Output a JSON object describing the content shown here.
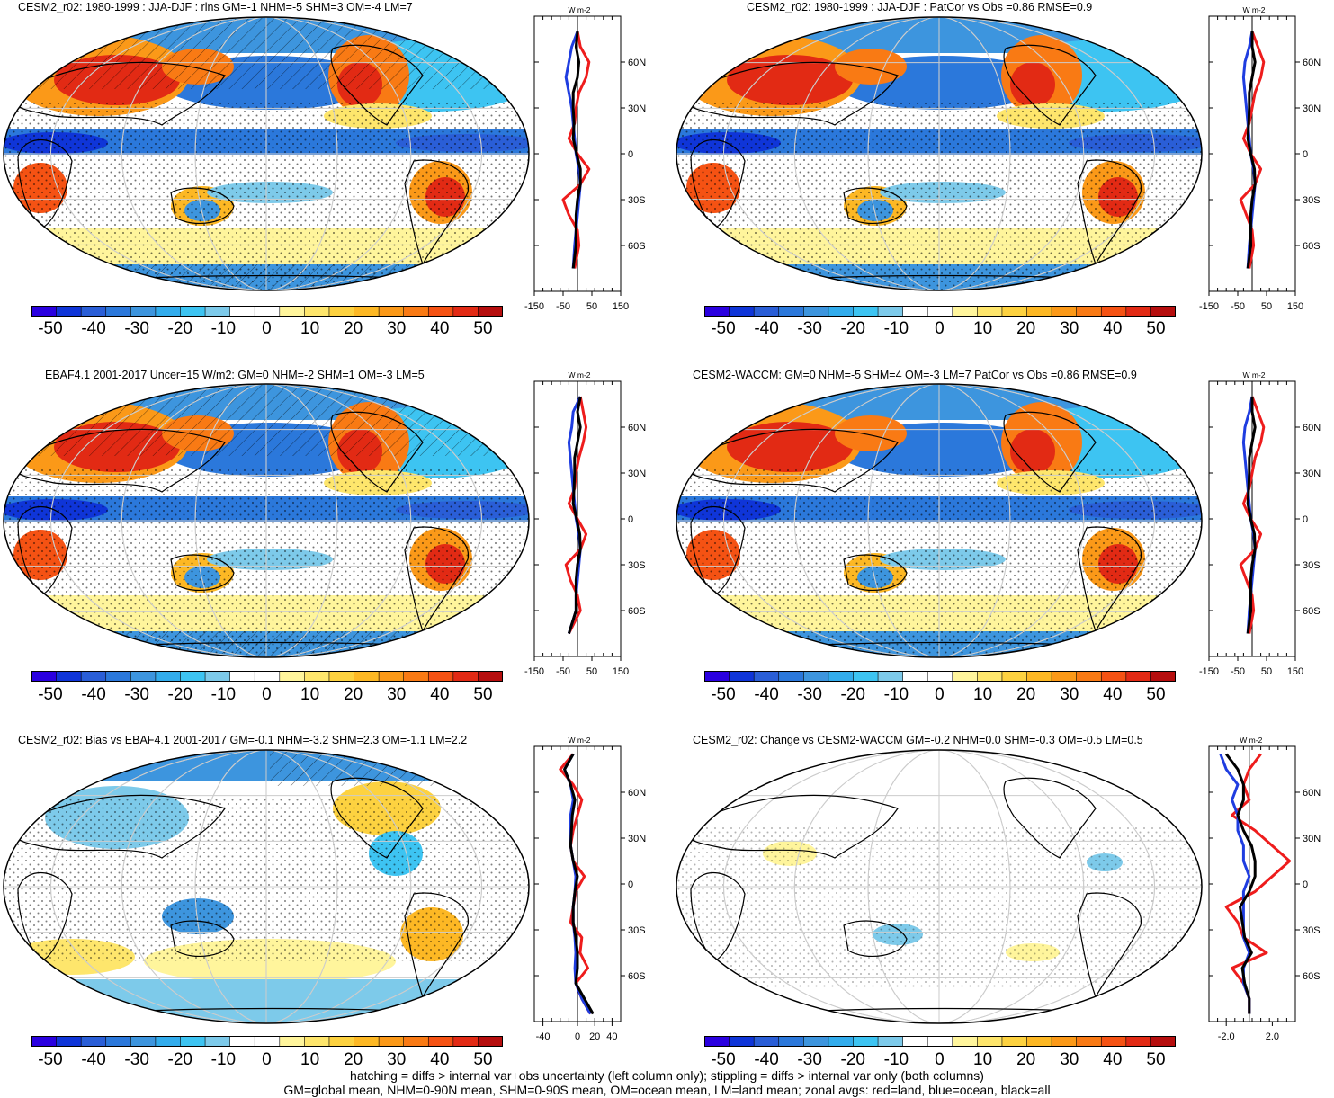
{
  "colorbar": {
    "colors": [
      "#2a00e0",
      "#0f35d8",
      "#2a5ed7",
      "#2b78db",
      "#3d95de",
      "#32acec",
      "#3dc4f2",
      "#7dcaea",
      "#ffffff",
      "#ffffff",
      "#fff59c",
      "#fee66c",
      "#fdd240",
      "#fdb824",
      "#fb9918",
      "#f97a14",
      "#f55213",
      "#e22a14",
      "#b60e0e"
    ],
    "labels": [
      "-50",
      "-40",
      "-30",
      "-20",
      "-10",
      "0",
      "10",
      "20",
      "30",
      "40",
      "50"
    ]
  },
  "chart_data": [
    {
      "type": "heatmap",
      "title": "CESM2_r02: 1980-1999 : JJA-DJF : rlns GM=-1 NHM=-5 SHM=3 OM=-4 LM=7",
      "zonal": {
        "unit_label": "W m-2",
        "xlim": [
          -150,
          150
        ],
        "xticks": [
          "-150",
          "-50",
          "50",
          "150"
        ],
        "yticks": [
          "60N",
          "30N",
          "0",
          "30S",
          "60S"
        ],
        "series": {
          "land": {
            "lat": [
              80,
              70,
              60,
              50,
              40,
              30,
              20,
              10,
              0,
              -10,
              -20,
              -30,
              -40,
              -50,
              -60,
              -75
            ],
            "values": [
              0,
              10,
              40,
              30,
              5,
              -5,
              -10,
              -30,
              0,
              40,
              10,
              -50,
              -30,
              0,
              5,
              -10
            ]
          },
          "ocean": {
            "lat": [
              80,
              70,
              60,
              50,
              40,
              30,
              20,
              10,
              0,
              -10,
              -20,
              -30,
              -40,
              -50,
              -60,
              -75
            ],
            "values": [
              0,
              -20,
              -30,
              -40,
              -30,
              -20,
              -15,
              -10,
              -5,
              5,
              10,
              5,
              0,
              -5,
              -10,
              -15
            ]
          },
          "all": {
            "lat": [
              80,
              70,
              60,
              50,
              40,
              30,
              20,
              10,
              0,
              -10,
              -20,
              -30,
              -40,
              -50,
              -60,
              -75
            ],
            "values": [
              0,
              -5,
              5,
              0,
              -15,
              -15,
              -12,
              -15,
              -3,
              10,
              10,
              0,
              -5,
              -5,
              -5,
              -15
            ]
          }
        }
      }
    },
    {
      "type": "heatmap",
      "title": "CESM2_r02: 1980-1999 : JJA-DJF : PatCor vs Obs =0.86 RMSE=0.9",
      "zonal": {
        "unit_label": "W m-2",
        "xlim": [
          -150,
          150
        ],
        "xticks": [
          "-150",
          "-50",
          "50",
          "150"
        ],
        "yticks": [
          "60N",
          "30N",
          "0",
          "30S",
          "60S"
        ],
        "series": {
          "land": {
            "lat": [
              80,
              70,
              60,
              50,
              40,
              30,
              20,
              10,
              0,
              -10,
              -20,
              -30,
              -40,
              -50,
              -60,
              -75
            ],
            "values": [
              0,
              20,
              40,
              30,
              10,
              0,
              -10,
              -30,
              -5,
              30,
              10,
              -40,
              -20,
              0,
              5,
              -10
            ]
          },
          "ocean": {
            "lat": [
              80,
              70,
              60,
              50,
              40,
              30,
              20,
              10,
              0,
              -10,
              -20,
              -30,
              -40,
              -50,
              -60,
              -75
            ],
            "values": [
              0,
              -10,
              -25,
              -30,
              -25,
              -20,
              -15,
              -10,
              -5,
              5,
              10,
              5,
              0,
              -5,
              -10,
              -15
            ]
          },
          "all": {
            "lat": [
              80,
              70,
              60,
              50,
              40,
              30,
              20,
              10,
              0,
              -10,
              -20,
              -30,
              -40,
              -50,
              -60,
              -75
            ],
            "values": [
              0,
              0,
              10,
              0,
              -10,
              -10,
              -12,
              -15,
              -5,
              8,
              10,
              0,
              -5,
              -5,
              -5,
              -15
            ]
          }
        }
      }
    },
    {
      "type": "heatmap",
      "title": "EBAF4.1 2001-2017 Uncer=15 W/m2: GM=0 NHM=-2 SHM=1 OM=-3 LM=5",
      "zonal": {
        "unit_label": "W m-2",
        "xlim": [
          -150,
          150
        ],
        "xticks": [
          "-150",
          "-50",
          "50",
          "150"
        ],
        "yticks": [
          "60N",
          "30N",
          "0",
          "30S",
          "60S"
        ],
        "series": {
          "land": {
            "lat": [
              80,
              70,
              60,
              50,
              40,
              30,
              20,
              10,
              0,
              -10,
              -20,
              -30,
              -40,
              -50,
              -60,
              -75
            ],
            "values": [
              10,
              20,
              30,
              20,
              5,
              -5,
              -10,
              -30,
              0,
              30,
              10,
              -40,
              -25,
              0,
              10,
              -30
            ]
          },
          "ocean": {
            "lat": [
              80,
              70,
              60,
              50,
              40,
              30,
              20,
              10,
              0,
              -10,
              -20,
              -30,
              -40,
              -50,
              -60,
              -75
            ],
            "values": [
              10,
              -15,
              -20,
              -30,
              -25,
              -20,
              -15,
              -10,
              -5,
              5,
              10,
              5,
              0,
              -5,
              -5,
              -30
            ]
          },
          "all": {
            "lat": [
              80,
              70,
              60,
              50,
              40,
              30,
              20,
              10,
              0,
              -10,
              -20,
              -30,
              -40,
              -50,
              -60,
              -75
            ],
            "values": [
              10,
              0,
              10,
              0,
              -10,
              -10,
              -12,
              -15,
              -3,
              8,
              10,
              0,
              -5,
              -5,
              -5,
              -30
            ]
          }
        }
      }
    },
    {
      "type": "heatmap",
      "title": "CESM2-WACCM: GM=0 NHM=-5 SHM=4 OM=-3 LM=7 PatCor vs Obs =0.86 RMSE=0.9",
      "zonal": {
        "unit_label": "W m-2",
        "xlim": [
          -150,
          150
        ],
        "xticks": [
          "-150",
          "-50",
          "50",
          "150"
        ],
        "yticks": [
          "60N",
          "30N",
          "0",
          "30S",
          "60S"
        ],
        "series": {
          "land": {
            "lat": [
              80,
              70,
              60,
              50,
              40,
              30,
              20,
              10,
              0,
              -10,
              -20,
              -30,
              -40,
              -50,
              -60,
              -75
            ],
            "values": [
              0,
              20,
              40,
              30,
              10,
              0,
              -10,
              -30,
              -5,
              30,
              10,
              -40,
              -20,
              0,
              5,
              -10
            ]
          },
          "ocean": {
            "lat": [
              80,
              70,
              60,
              50,
              40,
              30,
              20,
              10,
              0,
              -10,
              -20,
              -30,
              -40,
              -50,
              -60,
              -75
            ],
            "values": [
              0,
              -10,
              -25,
              -30,
              -25,
              -20,
              -15,
              -10,
              -5,
              5,
              10,
              5,
              0,
              -5,
              -10,
              -15
            ]
          },
          "all": {
            "lat": [
              80,
              70,
              60,
              50,
              40,
              30,
              20,
              10,
              0,
              -10,
              -20,
              -30,
              -40,
              -50,
              -60,
              -75
            ],
            "values": [
              0,
              0,
              10,
              0,
              -10,
              -10,
              -12,
              -15,
              -5,
              8,
              10,
              0,
              -5,
              -5,
              -5,
              -15
            ]
          }
        }
      }
    },
    {
      "type": "heatmap",
      "title": "CESM2_r02: Bias vs EBAF4.1 2001-2017 GM=-0.1 NHM=-3.2 SHM=2.3 OM=-1.1 LM=2.2",
      "zonal": {
        "unit_label": "W m-2",
        "xlim": [
          -50,
          50
        ],
        "xticks": [
          "-40",
          "0",
          "20",
          "40"
        ],
        "yticks": [
          "60N",
          "30N",
          "0",
          "30S",
          "60S"
        ],
        "series": {
          "land": {
            "lat": [
              85,
              75,
              65,
              55,
              45,
              35,
              25,
              15,
              5,
              -5,
              -15,
              -25,
              -35,
              -45,
              -55,
              -65,
              -75,
              -85
            ],
            "values": [
              -5,
              -20,
              -5,
              5,
              0,
              -5,
              -8,
              -5,
              8,
              -2,
              -5,
              -8,
              5,
              3,
              12,
              -2,
              5,
              15
            ]
          },
          "ocean": {
            "lat": [
              85,
              75,
              65,
              55,
              45,
              35,
              25,
              15,
              5,
              -5,
              -15,
              -25,
              -35,
              -45,
              -55,
              -65,
              -75,
              -85
            ],
            "values": [
              -5,
              -15,
              -8,
              -5,
              -8,
              -8,
              -8,
              -5,
              -2,
              -3,
              -5,
              -5,
              -3,
              -2,
              -3,
              -2,
              5,
              15
            ]
          },
          "all": {
            "lat": [
              85,
              75,
              65,
              55,
              45,
              35,
              25,
              15,
              5,
              -5,
              -15,
              -25,
              -35,
              -45,
              -55,
              -65,
              -75,
              -85
            ],
            "values": [
              -5,
              -15,
              -8,
              -3,
              -6,
              -7,
              -8,
              -5,
              0,
              -3,
              -5,
              -5,
              -2,
              0,
              0,
              -2,
              8,
              18
            ]
          }
        }
      }
    },
    {
      "type": "heatmap",
      "title": "CESM2_r02: Change vs CESM2-WACCM GM=-0.2 NHM=0.0 SHM=-0.3 OM=-0.5 LM=0.5",
      "zonal": {
        "unit_label": "W m-2",
        "xlim": [
          -3.5,
          4.0
        ],
        "xticks": [
          "-2.0",
          "2.0"
        ],
        "yticks": [
          "60N",
          "30N",
          "0",
          "30S",
          "60S"
        ],
        "series": {
          "land": {
            "lat": [
              85,
              75,
              65,
              55,
              45,
              35,
              25,
              15,
              5,
              -5,
              -15,
              -25,
              -35,
              -45,
              -55,
              -65,
              -75,
              -85
            ],
            "values": [
              1.0,
              0.0,
              -0.5,
              0.0,
              -1.5,
              0.5,
              2.0,
              3.5,
              2.0,
              0.5,
              -2.0,
              -1.0,
              -0.5,
              1.5,
              -1.5,
              -0.5,
              0.0,
              0.0
            ]
          },
          "ocean": {
            "lat": [
              85,
              75,
              65,
              55,
              45,
              35,
              25,
              15,
              5,
              -5,
              -15,
              -25,
              -35,
              -45,
              -55,
              -65,
              -75,
              -85
            ],
            "values": [
              -2.5,
              -2.0,
              -1.0,
              -1.5,
              -1.0,
              -1.0,
              -0.5,
              -0.5,
              0.0,
              -0.5,
              -0.5,
              -0.5,
              -0.5,
              0.0,
              -0.5,
              -0.5,
              0.0,
              0.0
            ]
          },
          "all": {
            "lat": [
              85,
              75,
              65,
              55,
              45,
              35,
              25,
              15,
              5,
              -5,
              -15,
              -25,
              -35,
              -45,
              -55,
              -65,
              -75,
              -85
            ],
            "values": [
              -2.0,
              -1.0,
              -0.5,
              -0.5,
              -1.0,
              -0.5,
              0.2,
              0.5,
              0.5,
              0.0,
              -0.8,
              -0.6,
              -0.4,
              0.2,
              -0.6,
              -0.4,
              0.0,
              0.0
            ]
          }
        }
      }
    }
  ],
  "footer": {
    "line1": "hatching = diffs > internal var+obs uncertainty (left column only); stippling = diffs > internal var only (both columns)",
    "line2": "GM=global mean, NHM=0-90N mean, SHM=0-90S mean, OM=ocean mean, LM=land mean; zonal avgs: red=land, blue=ocean, black=all"
  }
}
